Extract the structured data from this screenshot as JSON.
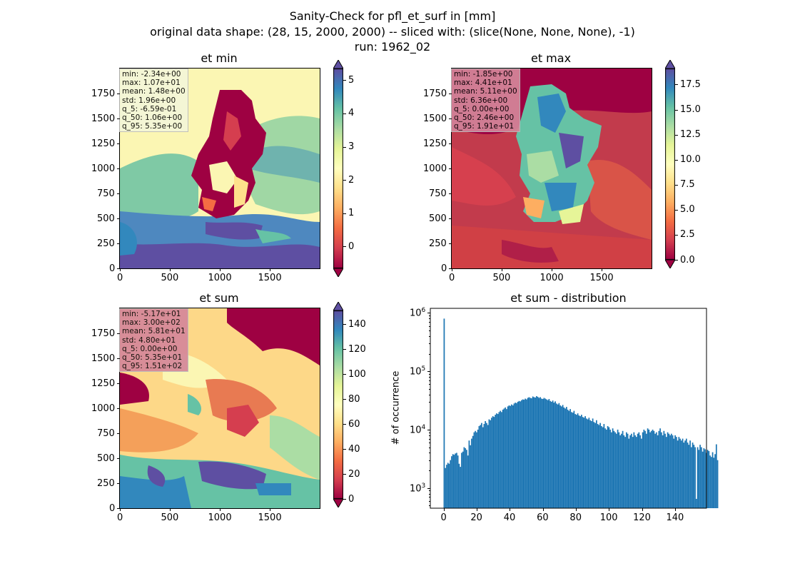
{
  "figure": {
    "title_line1": "Sanity-Check for pfl_et_surf in [mm]",
    "title_line2": "original data shape: (28, 15, 2000, 2000) -- sliced with: (slice(None, None, None), -1)",
    "title_line3": "run: 1962_02"
  },
  "panels": {
    "et_min": {
      "title": "et min",
      "stats": [
        "min: -2.34e+00",
        "max: 1.07e+01",
        "mean: 1.48e+00",
        "std: 1.96e+00",
        "q_5: -6.59e-01",
        "q_50: 1.06e+00",
        "q_95: 5.35e+00"
      ],
      "stats_bg": "#f4f7d8",
      "colorbar": {
        "min": -0.659,
        "max": 5.35,
        "ticks": [
          "0",
          "1",
          "2",
          "3",
          "4",
          "5"
        ],
        "tick_values": [
          0,
          1,
          2,
          3,
          4,
          5
        ]
      }
    },
    "et_max": {
      "title": "et max",
      "stats": [
        "min: -1.85e+00",
        "max: 4.41e+01",
        "mean: 5.11e+00",
        "std: 6.36e+00",
        "q_5: 0.00e+00",
        "q_50: 2.46e+00",
        "q_95: 1.91e+01"
      ],
      "stats_bg": "#d5879a",
      "colorbar": {
        "min": 0,
        "max": 19.1,
        "ticks": [
          "0.0",
          "2.5",
          "5.0",
          "7.5",
          "10.0",
          "12.5",
          "15.0",
          "17.5"
        ],
        "tick_values": [
          0,
          2.5,
          5,
          7.5,
          10,
          12.5,
          15,
          17.5
        ]
      }
    },
    "et_sum": {
      "title": "et sum",
      "stats": [
        "min: -5.17e+01",
        "max: 3.00e+02",
        "mean: 5.81e+01",
        "std: 4.80e+01",
        "q_5: 0.00e+00",
        "q_50: 5.35e+01",
        "q_95: 1.51e+02"
      ],
      "stats_bg": "#d5879a",
      "colorbar": {
        "min": 0,
        "max": 151,
        "ticks": [
          "0",
          "20",
          "40",
          "60",
          "80",
          "100",
          "120",
          "140"
        ],
        "tick_values": [
          0,
          20,
          40,
          60,
          80,
          100,
          120,
          140
        ]
      }
    },
    "map_axes": {
      "x_ticks": [
        "0",
        "500",
        "1000",
        "1500"
      ],
      "x_tick_values": [
        0,
        500,
        1000,
        1500
      ],
      "y_ticks": [
        "0",
        "250",
        "500",
        "750",
        "1000",
        "1250",
        "1500",
        "1750"
      ],
      "y_tick_values": [
        0,
        250,
        500,
        750,
        1000,
        1250,
        1500,
        1750
      ],
      "range": [
        0,
        2000
      ]
    }
  },
  "chart_data": {
    "type": "bar",
    "title": "et sum - distribution",
    "xlabel": "",
    "ylabel": "# of occurrence",
    "y_scale": "log",
    "xlim": [
      -8,
      159
    ],
    "ylim": [
      450,
      1200000
    ],
    "x_ticks": [
      "0",
      "20",
      "40",
      "60",
      "80",
      "100",
      "120",
      "140"
    ],
    "x_tick_values": [
      0,
      20,
      40,
      60,
      80,
      100,
      120,
      140
    ],
    "y_ticks": [
      "10^3",
      "10^4",
      "10^5",
      "10^6"
    ],
    "y_tick_labels": [
      {
        "base": "10",
        "exp": "3"
      },
      {
        "base": "10",
        "exp": "4"
      },
      {
        "base": "10",
        "exp": "5"
      },
      {
        "base": "10",
        "exp": "6"
      }
    ],
    "y_tick_values": [
      1000,
      10000,
      100000,
      1000000
    ],
    "bar_color": "#1f77b4",
    "bin_start": 0,
    "bin_width": 0.755,
    "values": [
      800000,
      2200,
      2500,
      2700,
      2600,
      3000,
      3500,
      3800,
      3700,
      3900,
      4000,
      3600,
      2600,
      2300,
      4000,
      4200,
      5000,
      4800,
      4500,
      3600,
      6500,
      5400,
      7000,
      7800,
      9000,
      9500,
      9000,
      10000,
      11500,
      12000,
      13000,
      11000,
      12500,
      14000,
      13000,
      12000,
      15000,
      14500,
      16000,
      17000,
      16500,
      18000,
      19000,
      18500,
      20000,
      21000,
      20000,
      22000,
      23000,
      24000,
      22500,
      25000,
      26000,
      25500,
      27000,
      26000,
      28000,
      29000,
      28500,
      30000,
      31000,
      30500,
      32000,
      33000,
      32500,
      34000,
      33000,
      35000,
      36000,
      35000,
      34500,
      37000,
      36000,
      35500,
      37500,
      36500,
      35000,
      36000,
      34000,
      33500,
      35000,
      34000,
      33000,
      32000,
      33500,
      31000,
      30000,
      31500,
      29000,
      30500,
      28000,
      27000,
      28500,
      26000,
      25000,
      26500,
      24000,
      23000,
      24500,
      22000,
      21000,
      22500,
      20000,
      19500,
      21000,
      18500,
      18000,
      19000,
      17500,
      17000,
      18000,
      16500,
      16000,
      17000,
      15500,
      15000,
      16000,
      14500,
      14000,
      15500,
      13500,
      13000,
      14500,
      12500,
      12000,
      13000,
      11500,
      11000,
      12500,
      10500,
      10000,
      11500,
      11000,
      10000,
      9000,
      10500,
      9500,
      9000,
      8500,
      10000,
      9000,
      8000,
      8500,
      9500,
      8000,
      7500,
      9000,
      8500,
      7000,
      8000,
      8500,
      7500,
      9000,
      8000,
      7500,
      8500,
      9000,
      8000,
      7000,
      9000,
      10000,
      9500,
      8500,
      10500,
      10000,
      9000,
      9500,
      10000,
      9500,
      8500,
      9000,
      8000,
      9500,
      10500,
      9000,
      8000,
      9500,
      8500,
      7500,
      9000,
      8500,
      8000,
      8500,
      8000,
      7000,
      8000,
      7500,
      6500,
      7500,
      7000,
      6500,
      7000,
      6000,
      6500,
      7000,
      6000,
      5500,
      6500,
      5000,
      6000,
      5500,
      5000,
      650,
      5000,
      4500,
      5500,
      5000,
      4200,
      4800,
      4600,
      4000,
      4500,
      4300,
      3600,
      3400,
      4100,
      3300,
      3800,
      5600,
      3000
    ]
  }
}
